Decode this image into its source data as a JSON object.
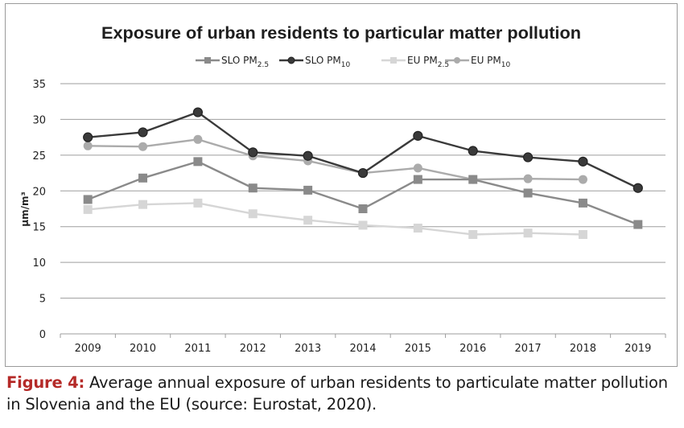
{
  "chart_data": {
    "type": "line",
    "title": "Exposure of urban residents to particular matter pollution",
    "ylabel": "µm/m³",
    "xlabel": "",
    "x": [
      "2009",
      "2010",
      "2011",
      "2012",
      "2013",
      "2014",
      "2015",
      "2016",
      "2017",
      "2018",
      "2019"
    ],
    "ylim": [
      0,
      35
    ],
    "yticks": [
      0,
      5,
      10,
      15,
      20,
      25,
      30,
      35
    ],
    "grid": true,
    "legend_position": "top-center",
    "series": [
      {
        "name": "SLO PM",
        "sub": "2.5",
        "color": "#8a8a8a",
        "marker": "square",
        "values": [
          18.8,
          21.8,
          24.1,
          20.4,
          20.1,
          17.5,
          21.6,
          21.6,
          19.7,
          18.3,
          15.3
        ]
      },
      {
        "name": "SLO PM",
        "sub": "10",
        "color": "#3a3a3a",
        "marker": "circle",
        "values": [
          27.5,
          28.2,
          31.0,
          25.4,
          24.9,
          22.5,
          27.7,
          25.6,
          24.7,
          24.1,
          20.4
        ]
      },
      {
        "name": "EU PM",
        "sub": "2.5",
        "color": "#d6d6d6",
        "marker": "square",
        "values": [
          17.4,
          18.1,
          18.3,
          16.8,
          15.9,
          15.2,
          14.8,
          13.9,
          14.1,
          13.9,
          null
        ]
      },
      {
        "name": "EU PM",
        "sub": "10",
        "color": "#ababab",
        "marker": "circle",
        "values": [
          26.3,
          26.2,
          27.2,
          24.9,
          24.2,
          22.5,
          23.2,
          21.6,
          21.7,
          21.6,
          null
        ]
      }
    ]
  },
  "caption": {
    "label": "Figure 4:",
    "text": " Average annual exposure of urban residents to particulate matter pollution in Slovenia and the EU (source: Eurostat, 2020)."
  }
}
